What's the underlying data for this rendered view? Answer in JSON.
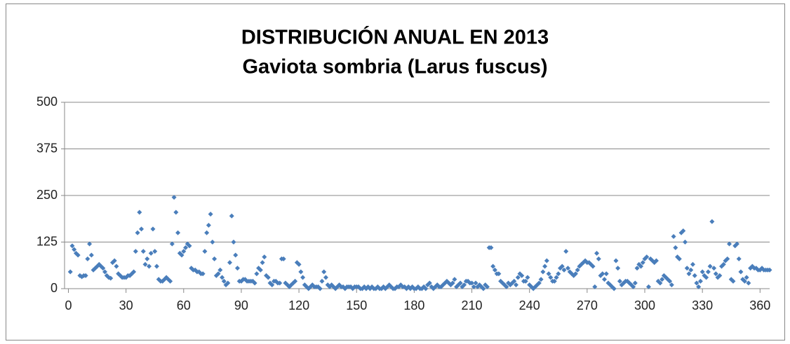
{
  "chart_data": {
    "type": "scatter",
    "title": "DISTRIBUCIÓN ANUAL EN 2013",
    "subtitle": "Gaviota sombria (Larus fuscus)",
    "x": [
      1,
      2,
      3,
      4,
      5,
      6,
      7,
      8,
      9,
      10,
      11,
      12,
      13,
      14,
      15,
      16,
      17,
      18,
      19,
      20,
      21,
      22,
      23,
      24,
      25,
      26,
      27,
      28,
      29,
      30,
      31,
      32,
      33,
      34,
      35,
      36,
      37,
      38,
      39,
      40,
      41,
      42,
      43,
      44,
      45,
      46,
      47,
      48,
      49,
      50,
      51,
      52,
      53,
      54,
      55,
      56,
      57,
      58,
      59,
      60,
      61,
      62,
      63,
      64,
      65,
      66,
      67,
      68,
      69,
      70,
      71,
      72,
      73,
      74,
      75,
      76,
      77,
      78,
      79,
      80,
      81,
      82,
      83,
      84,
      85,
      86,
      87,
      88,
      89,
      90,
      91,
      92,
      93,
      94,
      95,
      96,
      97,
      98,
      99,
      100,
      101,
      102,
      103,
      104,
      105,
      106,
      107,
      108,
      109,
      110,
      111,
      112,
      113,
      114,
      115,
      116,
      117,
      118,
      119,
      120,
      121,
      122,
      123,
      124,
      125,
      126,
      127,
      128,
      129,
      130,
      131,
      132,
      133,
      134,
      135,
      136,
      137,
      138,
      139,
      140,
      141,
      142,
      143,
      144,
      145,
      146,
      147,
      148,
      149,
      150,
      151,
      152,
      153,
      154,
      155,
      156,
      157,
      158,
      159,
      160,
      161,
      162,
      163,
      164,
      165,
      166,
      167,
      168,
      169,
      170,
      171,
      172,
      173,
      174,
      175,
      176,
      177,
      178,
      179,
      180,
      181,
      182,
      183,
      184,
      185,
      186,
      187,
      188,
      189,
      190,
      191,
      192,
      193,
      194,
      195,
      196,
      197,
      198,
      199,
      200,
      201,
      202,
      203,
      204,
      205,
      206,
      207,
      208,
      209,
      210,
      211,
      212,
      213,
      214,
      215,
      216,
      217,
      218,
      219,
      220,
      221,
      222,
      223,
      224,
      225,
      226,
      227,
      228,
      229,
      230,
      231,
      232,
      233,
      234,
      235,
      236,
      237,
      238,
      239,
      240,
      241,
      242,
      243,
      244,
      245,
      246,
      247,
      248,
      249,
      250,
      251,
      252,
      253,
      254,
      255,
      256,
      257,
      258,
      259,
      260,
      261,
      262,
      263,
      264,
      265,
      266,
      267,
      268,
      269,
      270,
      271,
      272,
      273,
      274,
      275,
      276,
      277,
      278,
      279,
      280,
      281,
      282,
      283,
      284,
      285,
      286,
      287,
      288,
      289,
      290,
      291,
      292,
      293,
      294,
      295,
      296,
      297,
      298,
      299,
      300,
      301,
      302,
      303,
      304,
      305,
      306,
      307,
      308,
      309,
      310,
      311,
      312,
      313,
      314,
      315,
      316,
      317,
      318,
      319,
      320,
      321,
      322,
      323,
      324,
      325,
      326,
      327,
      328,
      329,
      330,
      331,
      332,
      333,
      334,
      335,
      336,
      337,
      338,
      339,
      340,
      341,
      342,
      343,
      344,
      345,
      346,
      347,
      348,
      349,
      350,
      351,
      352,
      353,
      354,
      355,
      356,
      357,
      358,
      359,
      360,
      361,
      362,
      363,
      364,
      365
    ],
    "values": [
      45,
      115,
      105,
      95,
      90,
      35,
      32,
      35,
      35,
      80,
      120,
      90,
      50,
      55,
      60,
      65,
      60,
      55,
      45,
      35,
      30,
      28,
      70,
      75,
      60,
      40,
      35,
      30,
      30,
      30,
      35,
      35,
      40,
      45,
      100,
      150,
      205,
      160,
      100,
      65,
      80,
      60,
      95,
      160,
      100,
      60,
      25,
      20,
      20,
      25,
      30,
      25,
      20,
      120,
      245,
      205,
      150,
      95,
      90,
      100,
      110,
      120,
      115,
      55,
      50,
      50,
      45,
      45,
      40,
      40,
      100,
      150,
      170,
      200,
      125,
      80,
      35,
      40,
      50,
      30,
      20,
      10,
      15,
      70,
      195,
      125,
      90,
      55,
      20,
      20,
      25,
      25,
      20,
      20,
      20,
      20,
      15,
      40,
      55,
      50,
      70,
      85,
      35,
      30,
      15,
      10,
      20,
      20,
      15,
      15,
      80,
      80,
      15,
      10,
      5,
      10,
      15,
      20,
      70,
      65,
      45,
      30,
      10,
      5,
      0,
      5,
      10,
      5,
      5,
      5,
      0,
      20,
      45,
      30,
      10,
      5,
      10,
      5,
      0,
      5,
      10,
      5,
      5,
      0,
      5,
      5,
      5,
      0,
      5,
      5,
      5,
      0,
      0,
      5,
      0,
      5,
      0,
      5,
      0,
      0,
      5,
      0,
      0,
      5,
      0,
      5,
      10,
      5,
      0,
      0,
      5,
      5,
      10,
      5,
      5,
      0,
      5,
      0,
      5,
      0,
      0,
      5,
      0,
      0,
      5,
      0,
      10,
      15,
      5,
      0,
      5,
      10,
      5,
      5,
      10,
      15,
      20,
      15,
      10,
      15,
      25,
      5,
      10,
      15,
      5,
      10,
      20,
      20,
      15,
      15,
      5,
      15,
      5,
      10,
      5,
      0,
      10,
      5,
      110,
      110,
      60,
      50,
      40,
      40,
      20,
      15,
      10,
      5,
      15,
      10,
      15,
      20,
      10,
      30,
      40,
      35,
      20,
      20,
      30,
      10,
      5,
      0,
      5,
      10,
      15,
      25,
      45,
      60,
      75,
      40,
      30,
      20,
      20,
      30,
      40,
      55,
      60,
      50,
      100,
      55,
      45,
      40,
      35,
      40,
      50,
      60,
      65,
      70,
      75,
      70,
      70,
      65,
      60,
      5,
      95,
      80,
      35,
      40,
      25,
      40,
      15,
      10,
      5,
      0,
      75,
      55,
      20,
      10,
      15,
      20,
      20,
      15,
      10,
      5,
      15,
      55,
      65,
      60,
      70,
      80,
      85,
      5,
      80,
      75,
      70,
      75,
      20,
      15,
      25,
      35,
      30,
      25,
      20,
      10,
      140,
      110,
      85,
      80,
      150,
      155,
      125,
      55,
      40,
      50,
      65,
      35,
      15,
      5,
      20,
      45,
      35,
      30,
      45,
      60,
      180,
      55,
      40,
      30,
      35,
      60,
      65,
      75,
      80,
      120,
      25,
      20,
      115,
      120,
      80,
      45,
      25,
      20,
      30,
      15,
      55,
      60,
      55,
      55,
      50,
      50,
      55,
      50,
      50,
      50,
      50
    ],
    "color": "#4a7ebb",
    "xlim": [
      -2,
      365
    ],
    "xticks": [
      0,
      30,
      60,
      90,
      120,
      150,
      180,
      210,
      240,
      270,
      300,
      330,
      360
    ],
    "ylim": [
      0,
      500
    ],
    "yticks": [
      0,
      125,
      250,
      375,
      500
    ],
    "grid": true
  }
}
